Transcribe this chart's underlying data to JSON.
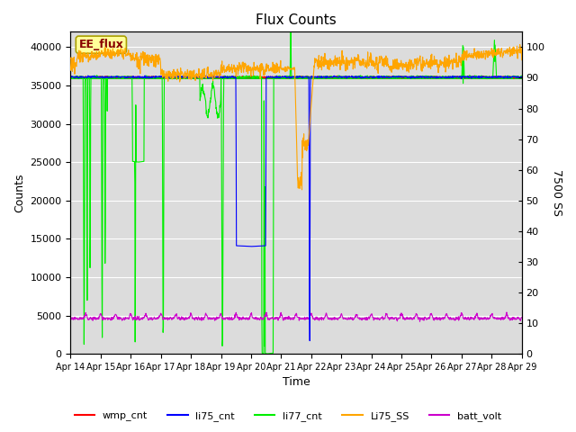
{
  "title": "Flux Counts",
  "xlabel": "Time",
  "ylabel_left": "Counts",
  "ylabel_right": "7500 SS",
  "annotation": "EE_flux",
  "ylim_left": [
    0,
    42000
  ],
  "ylim_right": [
    0,
    105
  ],
  "yticks_left": [
    0,
    5000,
    10000,
    15000,
    20000,
    25000,
    30000,
    35000,
    40000
  ],
  "yticks_right": [
    0,
    10,
    20,
    30,
    40,
    50,
    60,
    70,
    80,
    90,
    100
  ],
  "xtick_labels": [
    "Apr 14",
    "Apr 15",
    "Apr 16",
    "Apr 17",
    "Apr 18",
    "Apr 19",
    "Apr 20",
    "Apr 21",
    "Apr 22",
    "Apr 23",
    "Apr 24",
    "Apr 25",
    "Apr 26",
    "Apr 27",
    "Apr 28",
    "Apr 29"
  ],
  "colors": {
    "wmp_cnt": "#ff0000",
    "li75_cnt": "#0000ff",
    "li77_cnt": "#00ee00",
    "Li75_SS": "#ffa500",
    "batt_volt": "#cc00cc",
    "hline": "#00cc00",
    "background": "#dcdcdc"
  },
  "hline_value": 36100,
  "figsize": [
    6.4,
    4.8
  ],
  "dpi": 100
}
